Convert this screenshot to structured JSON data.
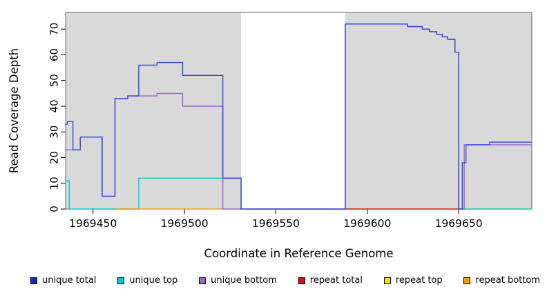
{
  "chart_data": {
    "type": "line",
    "style": "step",
    "title": "",
    "xlabel": "Coordinate in Reference Genome",
    "ylabel": "Read Coverage Depth",
    "xlim": [
      1969435,
      1969690
    ],
    "ylim": [
      0,
      76.5
    ],
    "x_ticks": [
      1969450,
      1969500,
      1969550,
      1969600,
      1969650
    ],
    "y_ticks": [
      0,
      10,
      20,
      30,
      40,
      50,
      60,
      70
    ],
    "grid": false,
    "background": {
      "plot_bg": "#ffffff",
      "shaded_regions": [
        {
          "x0": 1969435,
          "x1": 1969531,
          "color": "#d9d9d9"
        },
        {
          "x0": 1969588,
          "x1": 1969690,
          "color": "#d9d9d9"
        }
      ]
    },
    "series": [
      {
        "name": "repeat top",
        "color": "#f0e800",
        "points": [
          [
            1969650,
            0
          ],
          [
            1969690,
            0
          ]
        ]
      },
      {
        "name": "unique top",
        "color": "#00cccc",
        "points": [
          [
            1969435,
            11
          ],
          [
            1969437,
            0
          ],
          [
            1969475,
            12
          ],
          [
            1969521,
            12
          ],
          [
            1969531,
            0
          ],
          [
            1969532,
            null
          ],
          [
            1969650,
            0
          ],
          [
            1969690,
            0
          ]
        ]
      },
      {
        "name": "repeat bottom",
        "color": "#ff9a00",
        "points": [
          [
            1969462,
            0
          ],
          [
            1969522,
            0
          ]
        ]
      },
      {
        "name": "repeat total",
        "color": "#dd1111",
        "points": [
          [
            1969588,
            0
          ],
          [
            1969650,
            0
          ]
        ]
      },
      {
        "name": "unique bottom",
        "color": "#9b63d6",
        "points": [
          [
            1969435,
            23
          ],
          [
            1969443,
            28
          ],
          [
            1969455,
            5
          ],
          [
            1969462,
            43
          ],
          [
            1969469,
            44
          ],
          [
            1969485,
            45
          ],
          [
            1969499,
            40
          ],
          [
            1969521,
            0
          ],
          [
            1969588,
            72
          ],
          [
            1969622,
            71
          ],
          [
            1969630,
            70
          ],
          [
            1969634,
            69
          ],
          [
            1969638,
            68
          ],
          [
            1969641,
            67
          ],
          [
            1969644,
            66
          ],
          [
            1969648,
            61
          ],
          [
            1969650,
            0
          ],
          [
            1969653,
            25
          ],
          [
            1969690,
            25
          ]
        ]
      },
      {
        "name": "unique total",
        "color": "#2b48d9",
        "points": [
          [
            1969435,
            33
          ],
          [
            1969436,
            34
          ],
          [
            1969439,
            23
          ],
          [
            1969443,
            28
          ],
          [
            1969455,
            5
          ],
          [
            1969462,
            43
          ],
          [
            1969469,
            44
          ],
          [
            1969475,
            56
          ],
          [
            1969485,
            57
          ],
          [
            1969499,
            52
          ],
          [
            1969521,
            12
          ],
          [
            1969531,
            0
          ],
          [
            1969588,
            72
          ],
          [
            1969622,
            71
          ],
          [
            1969630,
            70
          ],
          [
            1969634,
            69
          ],
          [
            1969638,
            68
          ],
          [
            1969641,
            67
          ],
          [
            1969644,
            66
          ],
          [
            1969648,
            61
          ],
          [
            1969650,
            0
          ],
          [
            1969652,
            18
          ],
          [
            1969654,
            25
          ],
          [
            1969667,
            26
          ],
          [
            1969690,
            26
          ]
        ]
      }
    ],
    "legend": [
      {
        "label": "unique total",
        "color": "#2222cc"
      },
      {
        "label": "unique top",
        "color": "#00cccc"
      },
      {
        "label": "unique bottom",
        "color": "#9b63d6"
      },
      {
        "label": "repeat total",
        "color": "#dd1111"
      },
      {
        "label": "repeat top",
        "color": "#f0e800"
      },
      {
        "label": "repeat bottom",
        "color": "#ff9a00"
      }
    ],
    "legend_position": "bottom"
  }
}
